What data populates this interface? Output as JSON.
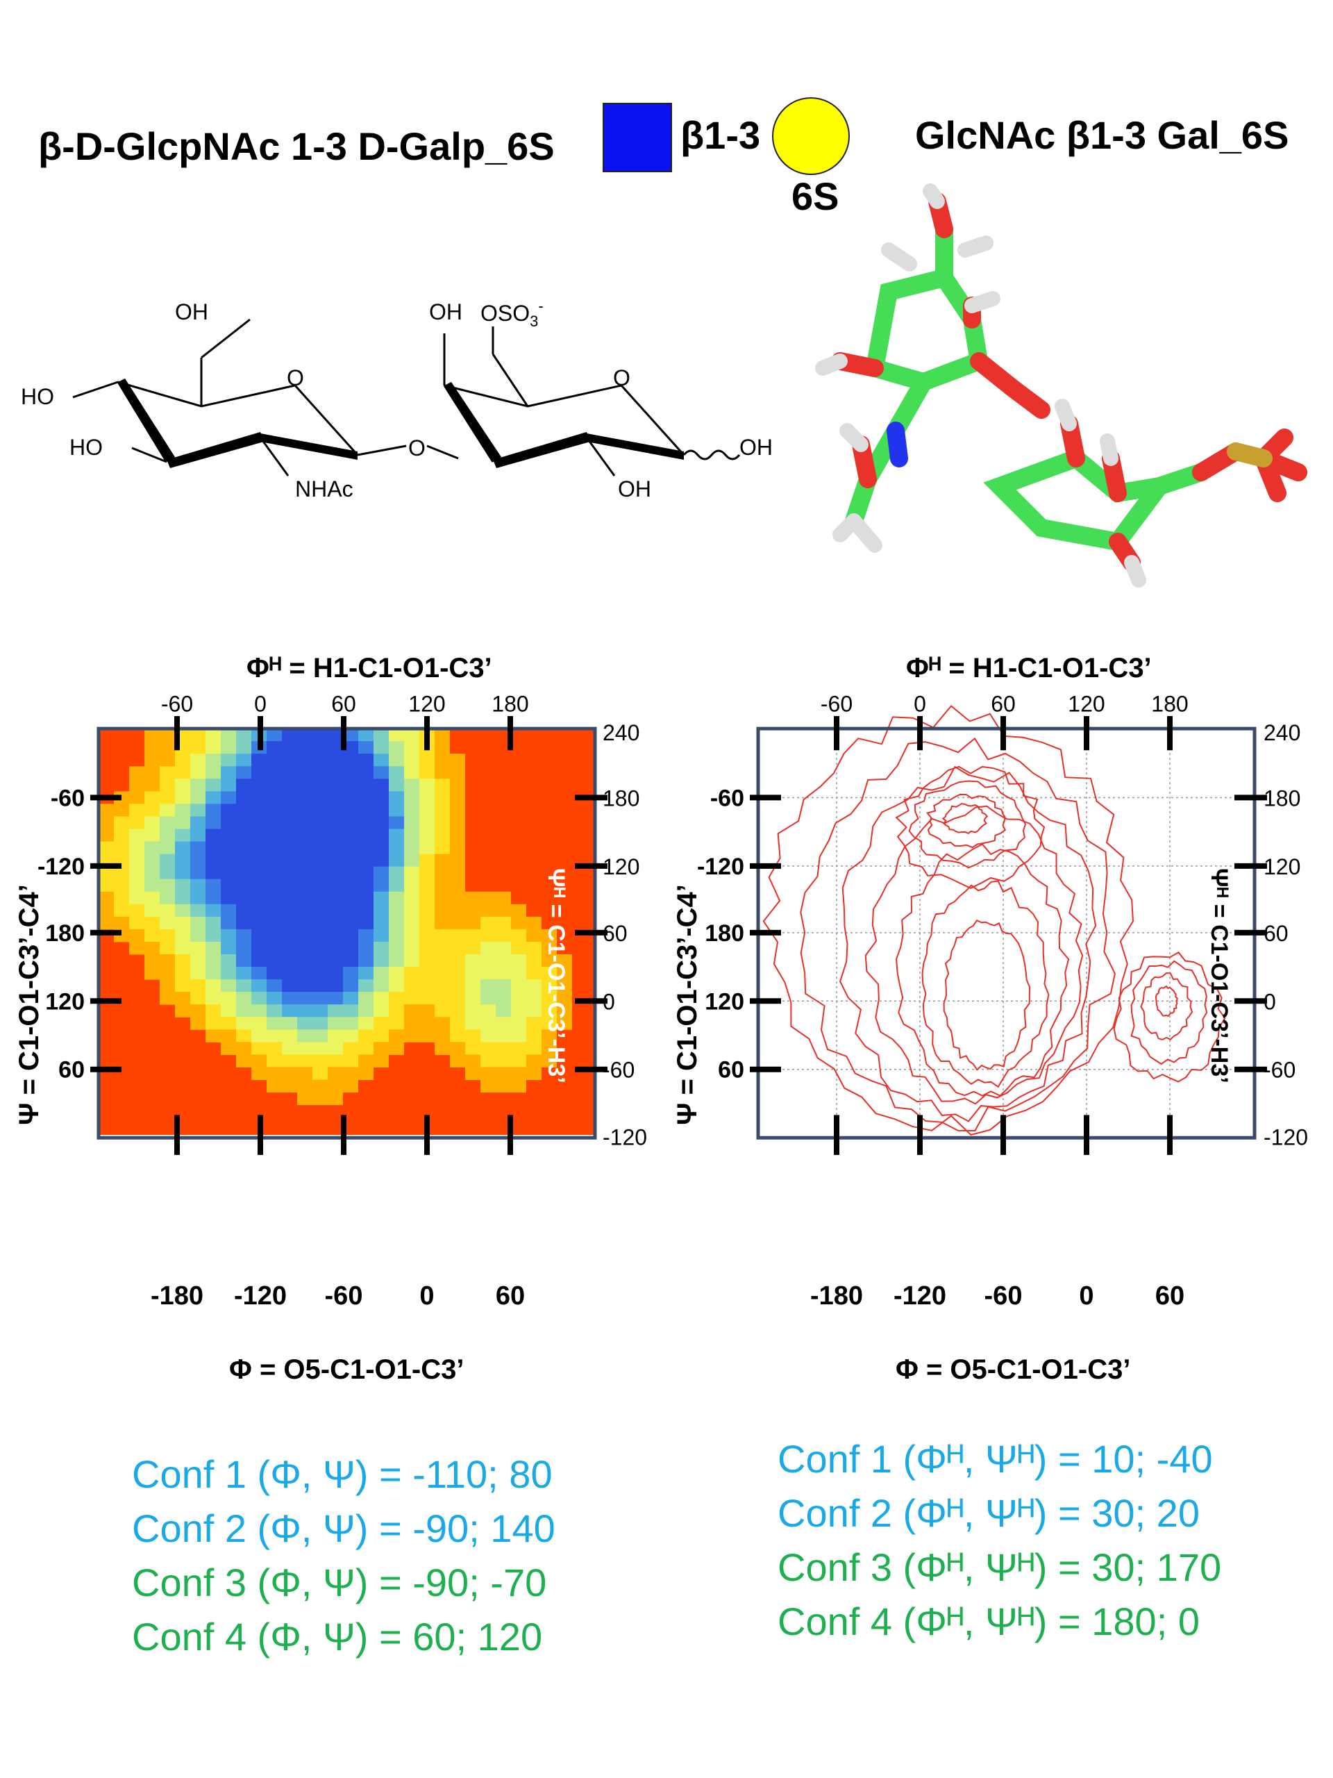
{
  "header": {
    "left_title": "β-D-GlcpNAc 1-3 D-Galp_6S",
    "link_label": "β1-3",
    "sulfate_label": "6S",
    "right_title": "GlcNAc β1-3 Gal_6S"
  },
  "structure": {
    "oh_top1": "OH",
    "oh_top2": "OH",
    "oso3": "OSO",
    "oso3_sub": "3",
    "oso3_sup": "-",
    "ho_left1": "HO",
    "ho_left2": "HO",
    "ring_o1": "O",
    "ring_o2": "O",
    "bridge_o": "O",
    "nhac": "NHAc",
    "oh_bottom": "OH",
    "oh_right": "OH"
  },
  "colors": {
    "glcnac_square": "#0b12f0",
    "gal_circle": "#ffff00",
    "heatmap_bg": "#ff4400",
    "contour": "#e8302a",
    "frame": "#3a4a6a",
    "conf_blue": "#19a9e6",
    "conf_green": "#1eb04e"
  },
  "left_plot": {
    "top_title": "Φᴴ = H1-C1-O1-C3’",
    "top_ticks": [
      "-60",
      "0",
      "60",
      "120",
      "180"
    ],
    "bottom_ticks": [
      "-180",
      "-120",
      "-60",
      "0",
      "60"
    ],
    "bottom_title": "Φ = O5-C1-O1-C3’",
    "left_ticks": [
      "-60",
      "-120",
      "180",
      "120",
      "60"
    ],
    "left_title": "Ψ = C1-O1-C3’-C4’",
    "right_ticks": [
      "240",
      "180",
      "120",
      "60",
      "0",
      "-60",
      "-120"
    ],
    "right_title": "Ψᴴ = C1-O1-C3’-H3’"
  },
  "right_plot": {
    "top_title": "Φᴴ = H1-C1-O1-C3’",
    "top_ticks": [
      "-60",
      "0",
      "60",
      "120",
      "180"
    ],
    "bottom_ticks": [
      "-180",
      "-120",
      "-60",
      "0",
      "60"
    ],
    "bottom_title": "Φ = O5-C1-O1-C3’",
    "left_ticks": [
      "-60",
      "-120",
      "180",
      "120",
      "60"
    ],
    "left_title": "Ψ = C1-O1-C3’-C4’",
    "right_ticks": [
      "240",
      "180",
      "120",
      "60",
      "0",
      "-60",
      "-120"
    ],
    "right_title": "Ψᴴ = C1-O1-C3’-H3’"
  },
  "conformations_left": [
    {
      "label": "Conf 1 (Φ, Ψ) = -110; 80",
      "color": "blue"
    },
    {
      "label": "Conf 2 (Φ, Ψ) =  -90; 140",
      "color": "blue"
    },
    {
      "label": "Conf 3 (Φ, Ψ) =  -90; -70",
      "color": "green"
    },
    {
      "label": "Conf 4 (Φ, Ψ) =   60; 120",
      "color": "green"
    }
  ],
  "conformations_right": [
    {
      "label": "Conf 1 (Φᴴ, Ψᴴ) = 10; -40",
      "color": "blue"
    },
    {
      "label": "Conf 2 (Φᴴ, Ψᴴ) = 30; 20",
      "color": "blue"
    },
    {
      "label": "Conf 3 (Φᴴ, Ψᴴ) = 30; 170",
      "color": "green"
    },
    {
      "label": "Conf 4 (Φᴴ, Ψᴴ) = 180; 0",
      "color": "green"
    }
  ]
}
